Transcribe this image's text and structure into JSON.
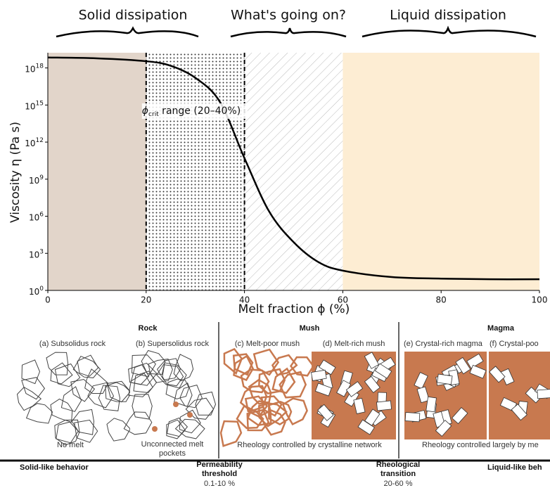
{
  "header": [
    "Solid dissipation",
    "What's going on?",
    "Liquid dissipation"
  ],
  "chart_data": {
    "type": "line",
    "x_label": "Melt fraction ϕ (%)",
    "y_label": "Viscosity η (Pa s)",
    "x": [
      0,
      10,
      20,
      25,
      30,
      35,
      40,
      45,
      50,
      55,
      60,
      70,
      80,
      90,
      100
    ],
    "values": [
      7e+18,
      6e+18,
      3.5e+18,
      1.5e+18,
      1.6e+17,
      1800000000000000.0,
      50000000000.0,
      2500000.0,
      8000,
      200,
      40,
      12,
      9,
      8,
      8
    ],
    "color": "#000000",
    "log_y": true,
    "xlim": [
      0,
      100
    ],
    "xticks": [
      0,
      20,
      40,
      60,
      80,
      100
    ],
    "ylim": [
      1,
      1.7e+19
    ],
    "yticks": [
      {
        "value": 1,
        "label": "10^0"
      },
      {
        "value": 1000,
        "label": "10^3"
      },
      {
        "value": 1000000,
        "label": "10^6"
      },
      {
        "value": 1000000000,
        "label": "10^9"
      },
      {
        "value": 1000000000000,
        "label": "10^12"
      },
      {
        "value": 1000000000000000,
        "label": "10^15"
      },
      {
        "value": 1000000000000000000,
        "label": "10^18"
      }
    ],
    "regions": [
      {
        "xlim": [
          0,
          20
        ],
        "color": "#e2d5ca",
        "pattern": "none"
      },
      {
        "xlim": [
          20,
          40
        ],
        "color": "#ffffff",
        "pattern": "dots"
      },
      {
        "xlim": [
          40,
          60
        ],
        "color": "#ffffff",
        "pattern": "hatch"
      },
      {
        "xlim": [
          60,
          100
        ],
        "color": "#fdedd3",
        "pattern": "none"
      }
    ],
    "vlines": [
      20,
      40
    ],
    "annotation": {
      "symbol": "ϕ",
      "subscript": "crit",
      "text": " range (20–40%)"
    }
  },
  "diagram": {
    "groups": [
      "Rock",
      "Mush",
      "Magma"
    ],
    "panels": [
      "(a) Subsolidus rock",
      "(b) Supersolidus rock",
      "(c) Melt-poor mush",
      "(d) Melt-rich mush",
      "(e) Crystal-rich magma",
      "(f) Crystal-poo"
    ],
    "captions": [
      "No melt",
      "Unconnected melt",
      "pockets",
      "Rheology controlled by crystalline network",
      "Rheology controlled largely by me"
    ],
    "scale": [
      "Solid-like behavior",
      "Permeability",
      "threshold",
      "0.1-10 %",
      "Rheological",
      "transition",
      "20-60 %",
      "Liquid-like beh"
    ]
  }
}
